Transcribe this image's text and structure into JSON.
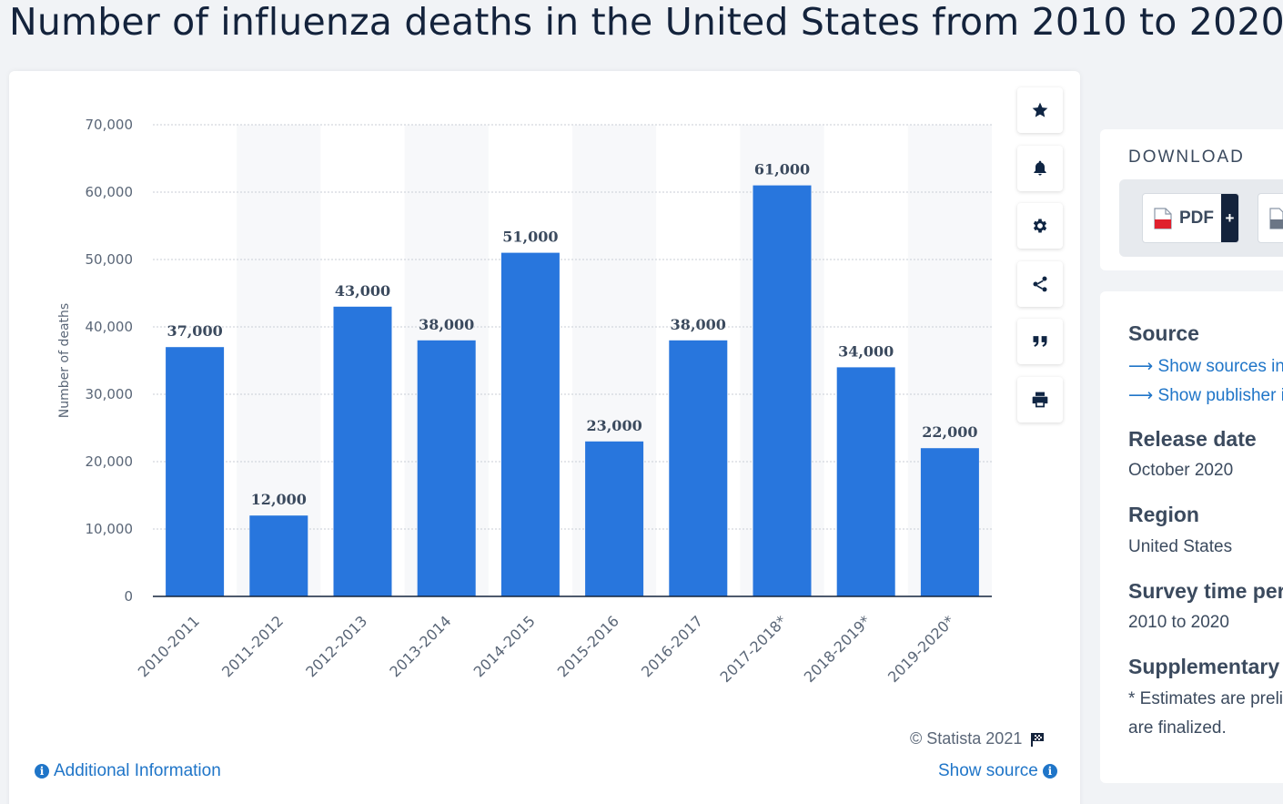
{
  "page": {
    "title": "Number of influenza deaths in the United States from 2010 to 2020"
  },
  "chart_data": {
    "type": "bar",
    "title": "Number of influenza deaths in the United States from 2010 to 2020",
    "categories": [
      "2010-2011",
      "2011-2012",
      "2012-2013",
      "2013-2014",
      "2014-2015",
      "2015-2016",
      "2016-2017",
      "2017-2018*",
      "2018-2019*",
      "2019-2020*"
    ],
    "values": [
      37000,
      12000,
      43000,
      38000,
      51000,
      23000,
      38000,
      61000,
      34000,
      22000
    ],
    "value_labels": [
      "37,000",
      "12,000",
      "43,000",
      "38,000",
      "51,000",
      "23,000",
      "38,000",
      "61,000",
      "34,000",
      "22,000"
    ],
    "xlabel": "",
    "ylabel": "Number of deaths",
    "ylim": [
      0,
      70000
    ],
    "yticks": [
      0,
      10000,
      20000,
      30000,
      40000,
      50000,
      60000,
      70000
    ],
    "ytick_labels": [
      "0",
      "10,000",
      "20,000",
      "30,000",
      "40,000",
      "50,000",
      "60,000",
      "70,000"
    ],
    "grid": true,
    "legend": "none",
    "bar_color": "#2876dd"
  },
  "tools": {
    "items": [
      {
        "name": "star-icon"
      },
      {
        "name": "bell-icon"
      },
      {
        "name": "gear-icon"
      },
      {
        "name": "share-icon"
      },
      {
        "name": "quote-icon"
      },
      {
        "name": "print-icon"
      }
    ]
  },
  "footer": {
    "copyright": "© Statista 2021",
    "additional_info": "Additional Information",
    "show_source": "Show source"
  },
  "download": {
    "title": "DOWNLOAD",
    "pdf_label": "PDF",
    "plus_label": "+"
  },
  "info": {
    "source_heading": "Source",
    "show_sources_link": "Show sources information",
    "show_publisher_link": "Show publisher information",
    "release_heading": "Release date",
    "release_value": "October 2020",
    "region_heading": "Region",
    "region_value": "United States",
    "survey_heading": "Survey time period",
    "survey_value": "2010 to 2020",
    "supplementary_heading": "Supplementary notes",
    "supplementary_line1": "* Estimates are preliminary until they",
    "supplementary_line2": "are finalized."
  },
  "colors": {
    "accent": "#1f75c8",
    "bar": "#2876dd",
    "title": "#14233c"
  }
}
